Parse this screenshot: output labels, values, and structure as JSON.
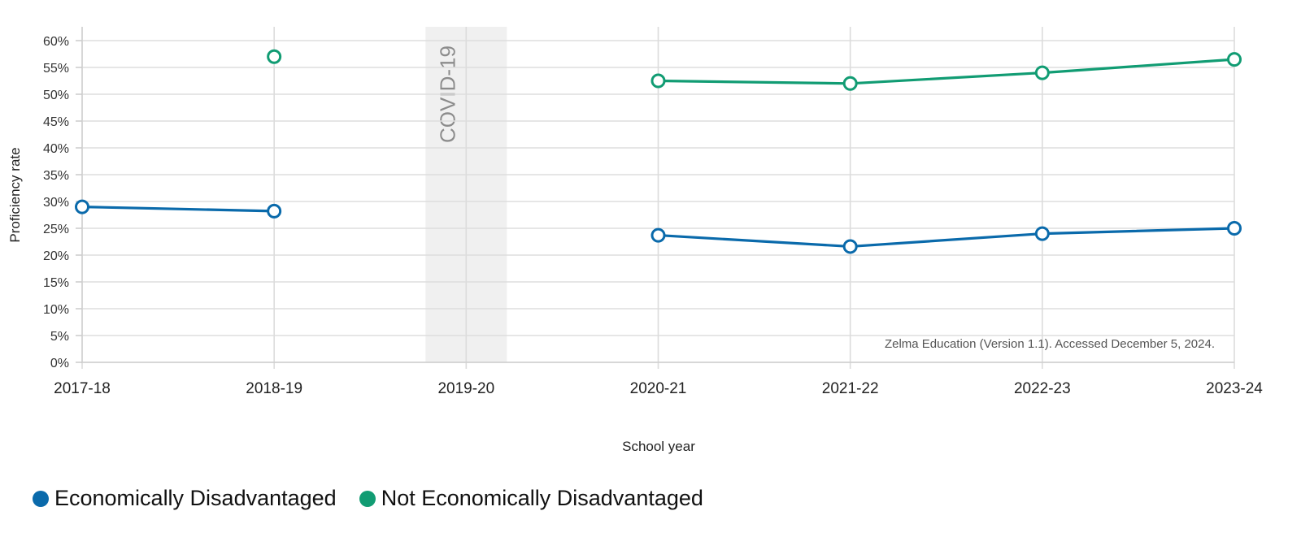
{
  "chart_data": {
    "type": "line",
    "xlabel": "School year",
    "ylabel": "Proficiency rate",
    "categories": [
      "2017-18",
      "2018-19",
      "2019-20",
      "2020-21",
      "2021-22",
      "2022-23",
      "2023-24"
    ],
    "y_ticks": [
      "0%",
      "5%",
      "10%",
      "15%",
      "20%",
      "25%",
      "30%",
      "35%",
      "40%",
      "45%",
      "50%",
      "55%",
      "60%"
    ],
    "ylim": [
      0,
      60
    ],
    "grid": true,
    "shaded_region": {
      "category": "2019-20",
      "label": "COVID-19",
      "color": "#f0f0f0"
    },
    "series": [
      {
        "name": "Economically Disadvantaged",
        "color": "#0a6aab",
        "values": [
          29,
          28.2,
          null,
          23.7,
          21.6,
          24,
          25
        ]
      },
      {
        "name": "Not Economically Disadvantaged",
        "color": "#119c73",
        "values": [
          null,
          57,
          null,
          52.5,
          52,
          54,
          56.5
        ]
      }
    ],
    "source_note": "Zelma Education (Version 1.1). Accessed December 5, 2024.",
    "legend_position": "bottom-left"
  }
}
